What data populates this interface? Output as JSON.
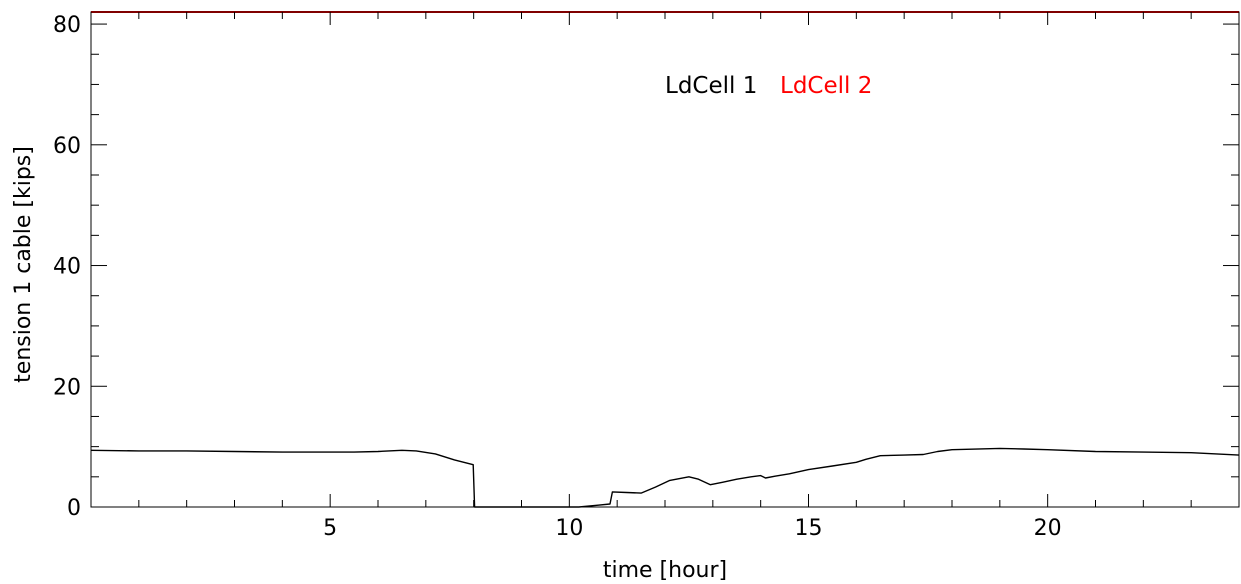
{
  "chart_data": {
    "type": "line",
    "title": "",
    "xlabel": "time [hour]",
    "ylabel": "tension 1 cable [kips]",
    "xlim": [
      0,
      24
    ],
    "ylim": [
      0,
      82
    ],
    "xticks": [
      5,
      10,
      15,
      20
    ],
    "xtick_labels": [
      "5",
      "10",
      "15",
      "20"
    ],
    "yticks": [
      0,
      20,
      40,
      60,
      80
    ],
    "ytick_labels": [
      "0",
      "20",
      "40",
      "60",
      "80"
    ],
    "grid": false,
    "legend_placement": "top-center",
    "series": [
      {
        "name": "LdCell 1",
        "color": "#000000",
        "x": [
          0,
          1,
          2,
          3,
          4,
          5,
          5.5,
          6,
          6.5,
          6.8,
          7.2,
          7.6,
          7.99,
          8.02,
          9,
          10.2,
          10.6,
          10.85,
          10.9,
          11.2,
          11.5,
          11.8,
          12.1,
          12.5,
          12.7,
          12.95,
          13.2,
          13.5,
          13.8,
          14.0,
          14.1,
          14.3,
          14.6,
          15.0,
          15.5,
          16.0,
          16.2,
          16.5,
          17.0,
          17.4,
          17.7,
          18.0,
          19.0,
          19.5,
          20.0,
          21.0,
          22.0,
          23.0,
          24.0
        ],
        "y": [
          9.4,
          9.3,
          9.3,
          9.2,
          9.1,
          9.1,
          9.1,
          9.2,
          9.4,
          9.3,
          8.8,
          7.8,
          7.0,
          0.0,
          0.0,
          0.0,
          0.3,
          0.5,
          2.5,
          2.4,
          2.3,
          3.3,
          4.4,
          5.0,
          4.6,
          3.7,
          4.1,
          4.6,
          5.0,
          5.2,
          4.8,
          5.1,
          5.5,
          6.2,
          6.8,
          7.4,
          7.9,
          8.5,
          8.6,
          8.7,
          9.2,
          9.5,
          9.7,
          9.6,
          9.5,
          9.2,
          9.1,
          9.0,
          8.6
        ]
      },
      {
        "name": "LdCell 2",
        "color": "#ff0000",
        "x": [
          0,
          24
        ],
        "y": [
          82,
          82
        ]
      }
    ]
  }
}
